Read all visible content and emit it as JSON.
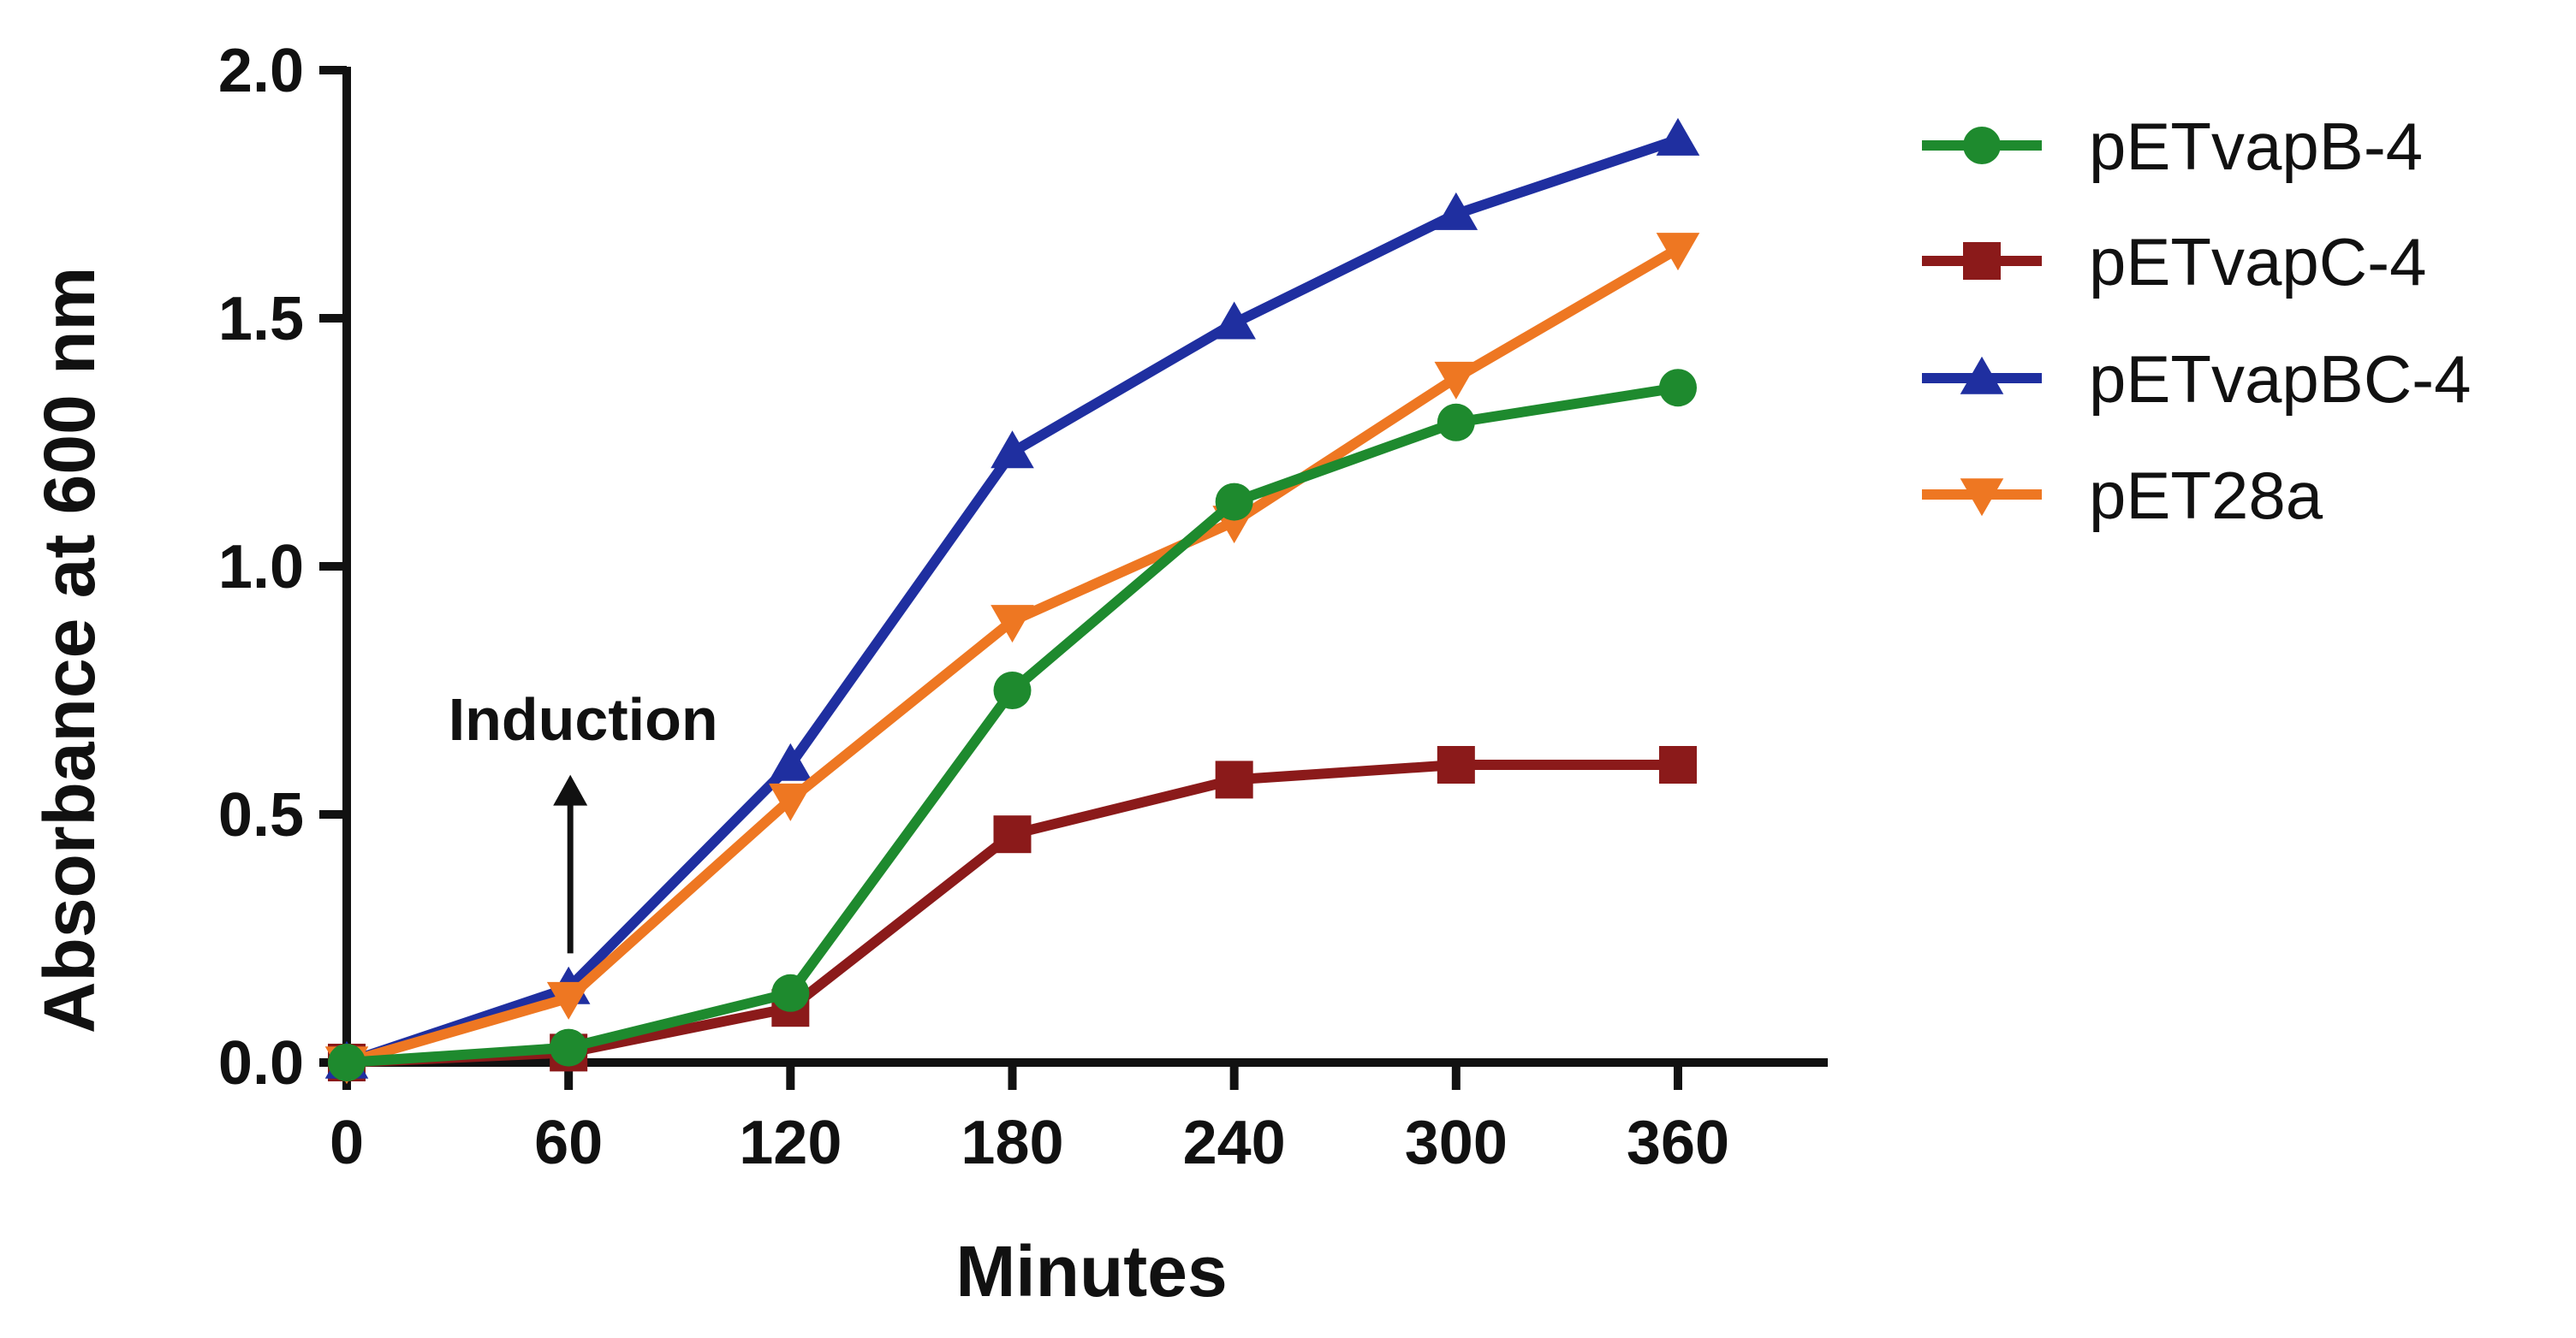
{
  "chart_data": {
    "type": "line",
    "title": "",
    "xlabel": "Minutes",
    "ylabel": "Absorbance at 600 nm",
    "x": [
      0,
      60,
      120,
      180,
      240,
      300,
      360
    ],
    "xlim": [
      0,
      400
    ],
    "ylim": [
      0,
      2.0
    ],
    "x_ticks": [
      0,
      60,
      120,
      180,
      240,
      300,
      360
    ],
    "x_tick_labels": [
      "0",
      "60",
      "120",
      "180",
      "240",
      "300",
      "360"
    ],
    "y_ticks": [
      0,
      0.5,
      1.0,
      1.5,
      2.0
    ],
    "y_tick_labels": [
      "0.0",
      "0.5",
      "1.0",
      "1.5",
      "2.0"
    ],
    "grid": false,
    "legend_position": "right",
    "series": [
      {
        "name": "pETvapB-4",
        "color": "#1e8a2e",
        "marker": "circle",
        "values": [
          0.0,
          0.03,
          0.14,
          0.75,
          1.13,
          1.29,
          1.36
        ]
      },
      {
        "name": "pETvapC-4",
        "color": "#8b1a1a",
        "marker": "square",
        "values": [
          0.0,
          0.02,
          0.11,
          0.46,
          0.57,
          0.6,
          0.6
        ]
      },
      {
        "name": "pETvapBC-4",
        "color": "#1f2fa0",
        "marker": "triangle-up",
        "values": [
          0.0,
          0.15,
          0.6,
          1.23,
          1.49,
          1.71,
          1.86
        ]
      },
      {
        "name": "pET28a",
        "color": "#ee7722",
        "marker": "triangle-down",
        "values": [
          0.0,
          0.13,
          0.53,
          0.89,
          1.09,
          1.38,
          1.64
        ]
      }
    ],
    "annotations": [
      {
        "text": "Induction",
        "x": 60,
        "arrow_from_y": 0.22,
        "arrow_to_y": 0.58
      }
    ]
  }
}
